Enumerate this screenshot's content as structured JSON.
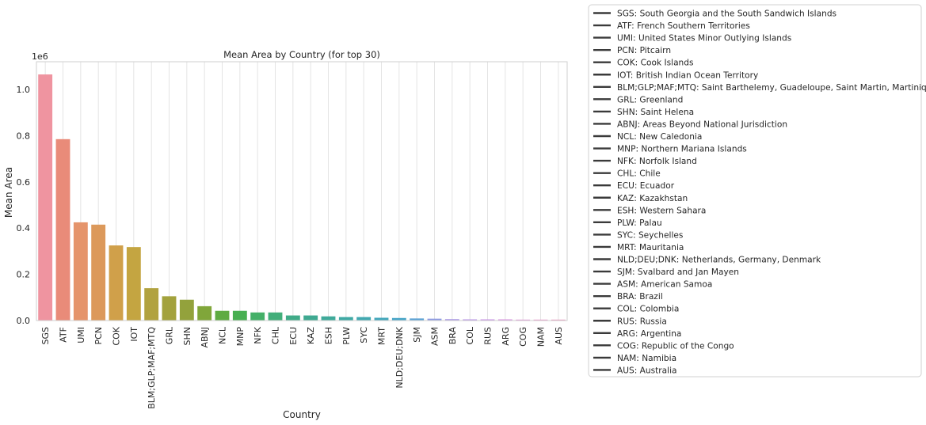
{
  "chart_data": {
    "type": "bar",
    "title": "Mean Area by Country (for top 30)",
    "xlabel": "Country",
    "ylabel": "Mean Area",
    "y_scale_label": "1e6",
    "ylim": [
      0,
      1.12
    ],
    "yticks": [
      0.0,
      0.2,
      0.4,
      0.6,
      0.8,
      1.0
    ],
    "grid": true,
    "legend_position": "outside-right",
    "categories": [
      "SGS",
      "ATF",
      "UMI",
      "PCN",
      "COK",
      "IOT",
      "BLM;GLP;MAF;MTQ",
      "GRL",
      "SHN",
      "ABNJ",
      "NCL",
      "MNP",
      "NFK",
      "CHL",
      "ECU",
      "KAZ",
      "ESH",
      "PLW",
      "SYC",
      "MRT",
      "NLD;DEU;DNK",
      "SJM",
      "ASM",
      "BRA",
      "COL",
      "RUS",
      "ARG",
      "COG",
      "NAM",
      "AUS"
    ],
    "values": [
      1.065,
      0.785,
      0.425,
      0.415,
      0.325,
      0.318,
      0.14,
      0.105,
      0.09,
      0.062,
      0.042,
      0.042,
      0.035,
      0.035,
      0.022,
      0.022,
      0.018,
      0.015,
      0.015,
      0.012,
      0.011,
      0.009,
      0.008,
      0.006,
      0.005,
      0.005,
      0.005,
      0.004,
      0.004,
      0.004
    ],
    "colors": [
      "#ef94a0",
      "#e98b79",
      "#e5946b",
      "#dc995b",
      "#d0a04a",
      "#c4a541",
      "#b1a240",
      "#a3a23d",
      "#93a23c",
      "#80a63a",
      "#5fab42",
      "#48af52",
      "#44b068",
      "#42ae7a",
      "#40ab88",
      "#3fa991",
      "#3faa9a",
      "#3fa9a4",
      "#41a8b0",
      "#43a7bb",
      "#48a5c7",
      "#5aa2d5",
      "#8c9ae2",
      "#a694e6",
      "#b58ee8",
      "#c58ae6",
      "#d68ae0",
      "#e38bd7",
      "#eb8fca",
      "#ee91ba"
    ],
    "legend_entries": [
      "SGS: South Georgia and the South Sandwich Islands",
      "ATF: French Southern Territories",
      "UMI: United States Minor Outlying Islands",
      "PCN: Pitcairn",
      "COK: Cook Islands",
      "IOT: British Indian Ocean Territory",
      "BLM;GLP;MAF;MTQ: Saint Barthelemy, Guadeloupe, Saint Martin, Martinique",
      "GRL: Greenland",
      "SHN: Saint Helena",
      "ABNJ: Areas Beyond National Jurisdiction",
      "NCL: New Caledonia",
      "MNP: Northern Mariana Islands",
      "NFK: Norfolk Island",
      "CHL: Chile",
      "ECU: Ecuador",
      "KAZ: Kazakhstan",
      "ESH: Western Sahara",
      "PLW: Palau",
      "SYC: Seychelles",
      "MRT: Mauritania",
      "NLD;DEU;DNK: Netherlands, Germany, Denmark",
      "SJM: Svalbard and Jan Mayen",
      "ASM: American Samoa",
      "BRA: Brazil",
      "COL: Colombia",
      "RUS: Russia",
      "ARG: Argentina",
      "COG: Republic of the Congo",
      "NAM: Namibia",
      "AUS: Australia"
    ]
  }
}
